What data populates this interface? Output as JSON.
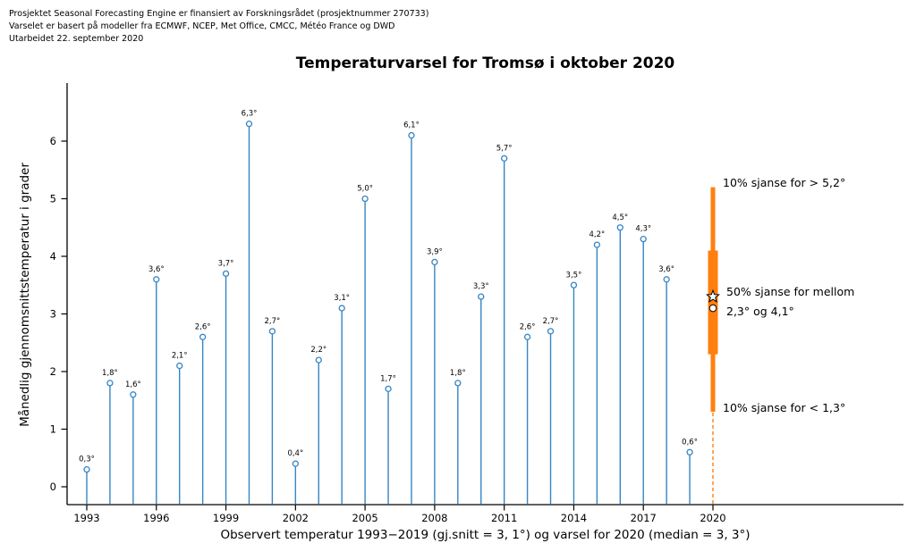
{
  "header": {
    "line1": "Prosjektet Seasonal Forecasting Engine er finansiert av Forskningsrådet (prosjektnummer 270733)",
    "line2": "Varselet er basert på modeller fra ECMWF, NCEP, Met Office, CMCC, Météo France og DWD",
    "line3": "Utarbeidet 22. september 2020"
  },
  "chart_data": {
    "type": "stem",
    "title": "Temperaturvarsel for Tromsø i oktober 2020",
    "ylabel": "Månedlig gjennomsnittstemperatur i grader",
    "xlabel": "Observert temperatur 1993−2019 (gj.snitt = 3, 1°) og varsel for 2020 (median = 3, 3°)",
    "x": [
      1993,
      1994,
      1995,
      1996,
      1997,
      1998,
      1999,
      2000,
      2001,
      2002,
      2003,
      2004,
      2005,
      2006,
      2007,
      2008,
      2009,
      2010,
      2011,
      2012,
      2013,
      2014,
      2015,
      2016,
      2017,
      2018,
      2019
    ],
    "values": [
      0.3,
      1.8,
      1.6,
      3.6,
      2.1,
      2.6,
      3.7,
      6.3,
      2.7,
      0.4,
      2.2,
      3.1,
      5.0,
      1.7,
      6.1,
      3.9,
      1.8,
      3.3,
      5.7,
      2.6,
      2.7,
      3.5,
      4.2,
      4.5,
      4.3,
      3.6,
      0.6
    ],
    "labels": [
      "0,3°",
      "1,8°",
      "1,6°",
      "3,6°",
      "2,1°",
      "2,6°",
      "3,7°",
      "6,3°",
      "2,7°",
      "0,4°",
      "2,2°",
      "3,1°",
      "5,0°",
      "1,7°",
      "6,1°",
      "3,9°",
      "1,8°",
      "3,3°",
      "5,7°",
      "2,6°",
      "2,7°",
      "3,5°",
      "4,2°",
      "4,5°",
      "4,3°",
      "3,6°",
      "0,6°"
    ],
    "x_ticks": [
      1993,
      1996,
      1999,
      2002,
      2005,
      2008,
      2011,
      2014,
      2017,
      2020
    ],
    "y_ticks": [
      0,
      1,
      2,
      3,
      4,
      5,
      6
    ],
    "ylim": [
      -0.3,
      6.9
    ],
    "mean_observed": 3.1,
    "stem_color": "#3585c5",
    "forecast": {
      "year": 2020,
      "median": 3.3,
      "mean_marker": 3.1,
      "p10_low": 1.3,
      "p10_high": 5.2,
      "p50_low": 2.3,
      "p50_high": 4.1,
      "color": "#ff7f0e",
      "annotations": {
        "top": "10% sjanse for > 5,2°",
        "mid1": "50% sjanse for mellom",
        "mid2": "2,3° og 4,1°",
        "bottom": "10% sjanse for < 1,3°"
      }
    }
  }
}
